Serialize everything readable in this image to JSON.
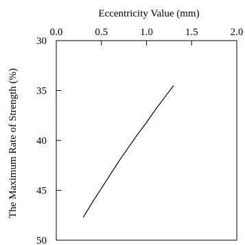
{
  "chart_data": {
    "type": "line",
    "title": "",
    "xlabel": "Eccentricity Value (mm)",
    "ylabel": "The Maximum Rate of Strength (%)",
    "x_axis_position": "top",
    "y_axis_inverted": true,
    "xlim": [
      0.0,
      2.0
    ],
    "ylim": [
      30,
      50
    ],
    "x_ticks": [
      0.0,
      0.5,
      1.0,
      1.5,
      2.0
    ],
    "x_tick_labels": [
      "0.0",
      "0.5",
      "1.0",
      "1.5",
      "2.0"
    ],
    "y_ticks": [
      30,
      35,
      40,
      45,
      50
    ],
    "y_tick_labels": [
      "30",
      "35",
      "40",
      "45",
      "50"
    ],
    "grid": false,
    "series": [
      {
        "color": "#000000",
        "x": [
          0.3,
          0.4,
          0.5,
          0.6,
          0.7,
          0.8,
          0.9,
          1.0,
          1.1,
          1.2,
          1.3
        ],
        "y": [
          47.7,
          46.2,
          44.8,
          43.4,
          42.0,
          40.7,
          39.4,
          38.2,
          36.9,
          35.7,
          34.5
        ]
      }
    ]
  }
}
